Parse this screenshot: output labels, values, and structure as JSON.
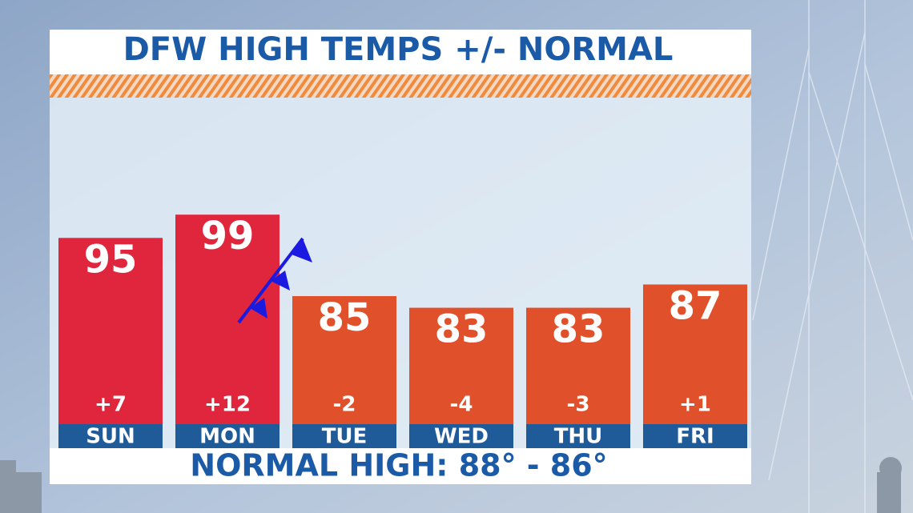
{
  "chart_data": {
    "type": "bar",
    "title": "DFW HIGH TEMPS +/- NORMAL",
    "annotation": "NORMAL HIGH: 88° - 86°",
    "categories": [
      "SUN",
      "MON",
      "TUE",
      "WED",
      "THU",
      "FRI"
    ],
    "values": [
      95,
      99,
      85,
      83,
      83,
      87
    ],
    "colors": [
      "#e0263d",
      "#e0263d",
      "#e0502a",
      "#e0502a",
      "#e0502a",
      "#e0502a"
    ],
    "departures": {
      "values": [
        7,
        12,
        -2,
        -4,
        -3,
        1
      ],
      "value_labels": [
        "+7",
        "+12",
        "-2",
        "-4",
        "-3",
        "+1"
      ]
    },
    "ylim": [
      63,
      118
    ]
  }
}
